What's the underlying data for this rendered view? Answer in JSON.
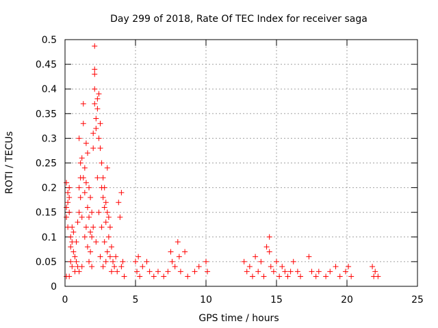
{
  "chart_data": {
    "type": "scatter",
    "title": "Day 299 of 2018, Rate Of TEC Index for receiver saga",
    "xlabel": "GPS time / hours",
    "ylabel": "ROTI / TECUs",
    "xlim": [
      0,
      25
    ],
    "ylim": [
      0,
      0.5
    ],
    "xticks": [
      0,
      5,
      10,
      15,
      20,
      25
    ],
    "xtick_labels": [
      "0",
      "5",
      "10",
      "15",
      "20",
      "25"
    ],
    "yticks": [
      0,
      0.05,
      0.1,
      0.15,
      0.2,
      0.25,
      0.3,
      0.35,
      0.4,
      0.45,
      0.5
    ],
    "ytick_labels": [
      "0",
      "0.05",
      "0.1",
      "0.15",
      "0.2",
      "0.25",
      "0.3",
      "0.35",
      "0.4",
      "0.45",
      "0.5"
    ],
    "grid": true,
    "marker": "plus",
    "series_color": "#ff0000",
    "series": [
      {
        "name": "ROTI",
        "points": [
          [
            0.1,
            0.02
          ],
          [
            0.1,
            0.21
          ],
          [
            0.1,
            0.16
          ],
          [
            0.1,
            0.14
          ],
          [
            0.2,
            0.19
          ],
          [
            0.2,
            0.17
          ],
          [
            0.2,
            0.12
          ],
          [
            0.3,
            0.2
          ],
          [
            0.3,
            0.18
          ],
          [
            0.3,
            0.15
          ],
          [
            0.3,
            0.02
          ],
          [
            0.4,
            0.1
          ],
          [
            0.4,
            0.08
          ],
          [
            0.4,
            0.05
          ],
          [
            0.5,
            0.12
          ],
          [
            0.5,
            0.09
          ],
          [
            0.5,
            0.04
          ],
          [
            0.6,
            0.07
          ],
          [
            0.6,
            0.11
          ],
          [
            0.7,
            0.06
          ],
          [
            0.7,
            0.03
          ],
          [
            0.8,
            0.09
          ],
          [
            0.8,
            0.05
          ],
          [
            0.9,
            0.04
          ],
          [
            0.9,
            0.13
          ],
          [
            1.0,
            0.15
          ],
          [
            1.0,
            0.2
          ],
          [
            1.0,
            0.03
          ],
          [
            1.0,
            0.3
          ],
          [
            1.1,
            0.25
          ],
          [
            1.1,
            0.22
          ],
          [
            1.1,
            0.18
          ],
          [
            1.2,
            0.26
          ],
          [
            1.2,
            0.14
          ],
          [
            1.2,
            0.04
          ],
          [
            1.3,
            0.37
          ],
          [
            1.3,
            0.33
          ],
          [
            1.3,
            0.22
          ],
          [
            1.4,
            0.24
          ],
          [
            1.4,
            0.19
          ],
          [
            1.4,
            0.1
          ],
          [
            1.5,
            0.29
          ],
          [
            1.5,
            0.21
          ],
          [
            1.5,
            0.12
          ],
          [
            1.6,
            0.27
          ],
          [
            1.6,
            0.16
          ],
          [
            1.6,
            0.08
          ],
          [
            1.7,
            0.2
          ],
          [
            1.7,
            0.14
          ],
          [
            1.7,
            0.05
          ],
          [
            1.8,
            0.18
          ],
          [
            1.8,
            0.11
          ],
          [
            1.8,
            0.07
          ],
          [
            1.9,
            0.15
          ],
          [
            1.9,
            0.1
          ],
          [
            1.9,
            0.04
          ],
          [
            2.0,
            0.31
          ],
          [
            2.0,
            0.28
          ],
          [
            2.0,
            0.12
          ],
          [
            2.1,
            0.487
          ],
          [
            2.1,
            0.44
          ],
          [
            2.1,
            0.43
          ],
          [
            2.1,
            0.4
          ],
          [
            2.1,
            0.37
          ],
          [
            2.2,
            0.34
          ],
          [
            2.2,
            0.32
          ],
          [
            2.2,
            0.09
          ],
          [
            2.3,
            0.38
          ],
          [
            2.3,
            0.36
          ],
          [
            2.3,
            0.22
          ],
          [
            2.4,
            0.39
          ],
          [
            2.4,
            0.3
          ],
          [
            2.4,
            0.15
          ],
          [
            2.5,
            0.33
          ],
          [
            2.5,
            0.28
          ],
          [
            2.5,
            0.06
          ],
          [
            2.6,
            0.25
          ],
          [
            2.6,
            0.2
          ],
          [
            2.6,
            0.12
          ],
          [
            2.7,
            0.22
          ],
          [
            2.7,
            0.18
          ],
          [
            2.7,
            0.04
          ],
          [
            2.8,
            0.2
          ],
          [
            2.8,
            0.16
          ],
          [
            2.8,
            0.09
          ],
          [
            2.9,
            0.17
          ],
          [
            2.9,
            0.13
          ],
          [
            2.9,
            0.05
          ],
          [
            3.0,
            0.24
          ],
          [
            3.0,
            0.15
          ],
          [
            3.0,
            0.07
          ],
          [
            3.1,
            0.14
          ],
          [
            3.1,
            0.1
          ],
          [
            3.2,
            0.12
          ],
          [
            3.2,
            0.06
          ],
          [
            3.3,
            0.08
          ],
          [
            3.3,
            0.03
          ],
          [
            3.4,
            0.05
          ],
          [
            3.5,
            0.04
          ],
          [
            3.6,
            0.06
          ],
          [
            3.7,
            0.03
          ],
          [
            3.8,
            0.17
          ],
          [
            3.9,
            0.14
          ],
          [
            4.0,
            0.19
          ],
          [
            4.0,
            0.04
          ],
          [
            4.1,
            0.05
          ],
          [
            4.2,
            0.02
          ],
          [
            5.0,
            0.05
          ],
          [
            5.1,
            0.03
          ],
          [
            5.2,
            0.06
          ],
          [
            5.3,
            0.02
          ],
          [
            5.5,
            0.04
          ],
          [
            5.8,
            0.05
          ],
          [
            6.0,
            0.03
          ],
          [
            6.3,
            0.02
          ],
          [
            6.6,
            0.03
          ],
          [
            7.0,
            0.02
          ],
          [
            7.3,
            0.03
          ],
          [
            7.5,
            0.07
          ],
          [
            7.6,
            0.05
          ],
          [
            7.8,
            0.04
          ],
          [
            8.0,
            0.09
          ],
          [
            8.1,
            0.06
          ],
          [
            8.2,
            0.03
          ],
          [
            8.5,
            0.07
          ],
          [
            8.7,
            0.02
          ],
          [
            9.2,
            0.03
          ],
          [
            9.5,
            0.04
          ],
          [
            10.0,
            0.05
          ],
          [
            10.1,
            0.03
          ],
          [
            12.7,
            0.05
          ],
          [
            12.9,
            0.03
          ],
          [
            13.1,
            0.04
          ],
          [
            13.3,
            0.02
          ],
          [
            13.5,
            0.06
          ],
          [
            13.7,
            0.03
          ],
          [
            13.9,
            0.05
          ],
          [
            14.1,
            0.02
          ],
          [
            14.3,
            0.08
          ],
          [
            14.5,
            0.1
          ],
          [
            14.5,
            0.07
          ],
          [
            14.6,
            0.04
          ],
          [
            14.8,
            0.03
          ],
          [
            15.0,
            0.05
          ],
          [
            15.2,
            0.02
          ],
          [
            15.4,
            0.04
          ],
          [
            15.6,
            0.03
          ],
          [
            15.8,
            0.02
          ],
          [
            16.0,
            0.03
          ],
          [
            16.2,
            0.05
          ],
          [
            16.5,
            0.03
          ],
          [
            16.7,
            0.02
          ],
          [
            17.3,
            0.06
          ],
          [
            17.5,
            0.03
          ],
          [
            17.8,
            0.02
          ],
          [
            18.0,
            0.03
          ],
          [
            18.5,
            0.02
          ],
          [
            18.8,
            0.03
          ],
          [
            19.2,
            0.04
          ],
          [
            19.5,
            0.02
          ],
          [
            19.9,
            0.03
          ],
          [
            20.1,
            0.04
          ],
          [
            20.3,
            0.02
          ],
          [
            21.8,
            0.04
          ],
          [
            21.9,
            0.02
          ],
          [
            22.0,
            0.03
          ],
          [
            22.2,
            0.02
          ]
        ]
      }
    ]
  }
}
